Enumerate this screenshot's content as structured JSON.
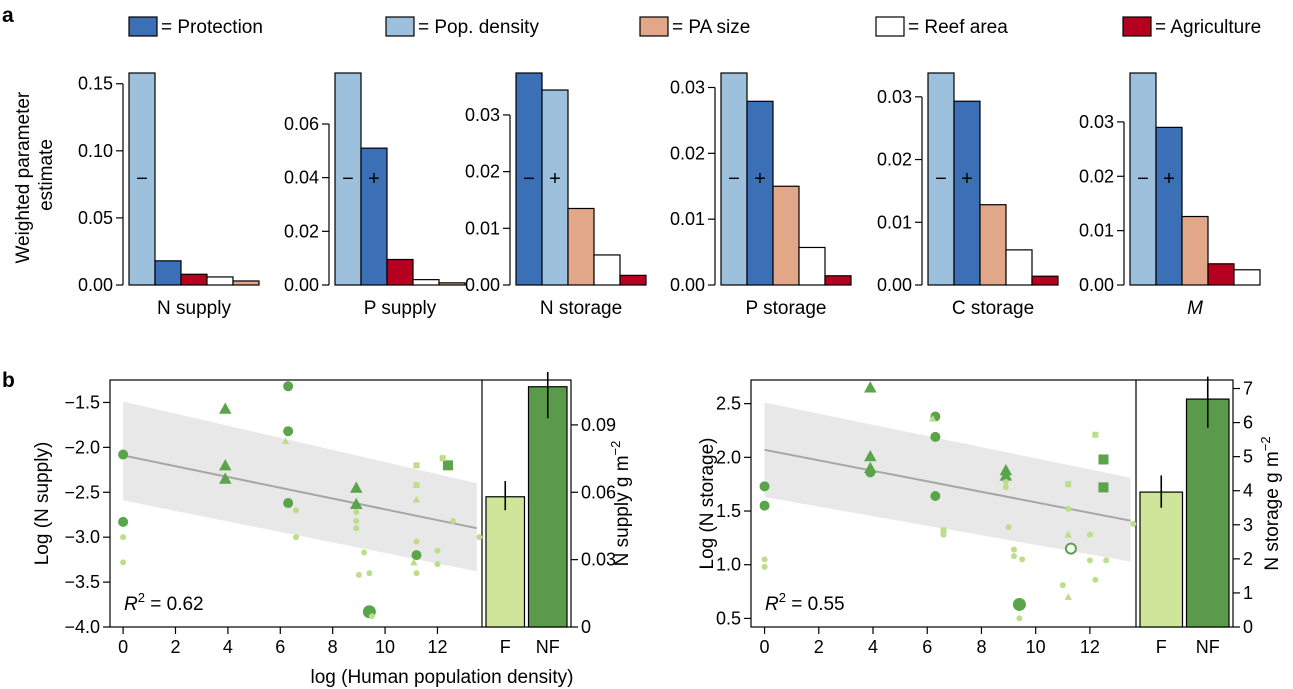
{
  "panel_labels": {
    "a": "a",
    "b": "b"
  },
  "legend": [
    {
      "label": "= Protection",
      "color": "#3b6fb6"
    },
    {
      "label": "= Pop. density",
      "color": "#9dc0dd"
    },
    {
      "label": "= PA size",
      "color": "#e2a688"
    },
    {
      "label": "= Reef area",
      "color": "#ffffff"
    },
    {
      "label": "= Agriculture",
      "color": "#b5001f"
    }
  ],
  "colors": {
    "protection": "#3b6fb6",
    "pop_density": "#9dc0dd",
    "pa_size": "#e2a688",
    "reef_area": "#ffffff",
    "agriculture": "#b5001f",
    "fished": "#cfe59a",
    "not_fished": "#5a9b4b",
    "point_dark": "#5aa44a",
    "point_light": "#bddd8a",
    "ribbon": "#e8e8e8",
    "fit_line": "#a6a6a6"
  },
  "ylabel_a": [
    "Weighted parameter",
    "estimate"
  ],
  "xlabel_b": "log (Human population density)",
  "chart_data": [
    {
      "type": "bar",
      "title": "N supply",
      "categories": [
        "Pop. density",
        "Protection",
        "Agriculture",
        "Reef area",
        "PA size"
      ],
      "values": [
        0.158,
        0.018,
        0.008,
        0.006,
        0.003
      ],
      "signs": [
        "−",
        "",
        "",
        "",
        ""
      ],
      "ylim": [
        0,
        0.158
      ],
      "yticks": [
        "0.00",
        "0.05",
        "0.10",
        "0.15"
      ],
      "ytick_values": [
        0,
        0.05,
        0.1,
        0.15
      ]
    },
    {
      "type": "bar",
      "title": "P supply",
      "categories": [
        "Pop. density",
        "Protection",
        "Agriculture",
        "Reef area",
        "PA size"
      ],
      "values": [
        0.079,
        0.051,
        0.0095,
        0.002,
        0.0008
      ],
      "signs": [
        "−",
        "+",
        "",
        "",
        ""
      ],
      "ylim": [
        0,
        0.079
      ],
      "yticks": [
        "0.00",
        "0.02",
        "0.04",
        "0.06"
      ],
      "ytick_values": [
        0,
        0.02,
        0.04,
        0.06
      ]
    },
    {
      "type": "bar",
      "title": "N storage",
      "categories": [
        "Protection",
        "Pop. density",
        "PA size",
        "Reef area",
        "Agriculture"
      ],
      "values": [
        0.0374,
        0.0344,
        0.0135,
        0.0053,
        0.0017
      ],
      "signs": [
        "−",
        "+",
        "",
        "",
        ""
      ],
      "ylim": [
        0,
        0.0374
      ],
      "yticks": [
        "0.00",
        "0.01",
        "0.02",
        "0.03"
      ],
      "ytick_values": [
        0,
        0.01,
        0.02,
        0.03
      ]
    },
    {
      "type": "bar",
      "title": "P storage",
      "categories": [
        "Pop. density",
        "Protection",
        "PA size",
        "Reef area",
        "Agriculture"
      ],
      "values": [
        0.0322,
        0.0279,
        0.015,
        0.0057,
        0.0014
      ],
      "signs": [
        "−",
        "+",
        "",
        "",
        ""
      ],
      "ylim": [
        0,
        0.0322
      ],
      "yticks": [
        "0.00",
        "0.01",
        "0.02",
        "0.03"
      ],
      "ytick_values": [
        0,
        0.01,
        0.02,
        0.03
      ]
    },
    {
      "type": "bar",
      "title": "C storage",
      "categories": [
        "Pop. density",
        "Protection",
        "PA size",
        "Reef area",
        "Agriculture"
      ],
      "values": [
        0.0338,
        0.0293,
        0.0128,
        0.0056,
        0.0014
      ],
      "signs": [
        "−",
        "+",
        "",
        "",
        ""
      ],
      "ylim": [
        0,
        0.0338
      ],
      "yticks": [
        "0.00",
        "0.01",
        "0.02",
        "0.03"
      ],
      "ytick_values": [
        0,
        0.01,
        0.02,
        0.03
      ]
    },
    {
      "type": "bar",
      "title": "M",
      "categories": [
        "Pop. density",
        "Protection",
        "PA size",
        "Agriculture",
        "Reef area"
      ],
      "values": [
        0.039,
        0.029,
        0.0126,
        0.0039,
        0.0028
      ],
      "signs": [
        "−",
        "+",
        "",
        "",
        ""
      ],
      "ylim": [
        0,
        0.039
      ],
      "yticks": [
        "0.00",
        "0.01",
        "0.02",
        "0.03"
      ],
      "ytick_values": [
        0,
        0.01,
        0.02,
        0.03
      ]
    },
    {
      "type": "scatter",
      "ylabel": "Log (N supply)",
      "xlim": [
        -0.5,
        13.7
      ],
      "ylim": [
        -4.0,
        -1.25
      ],
      "xticks": [
        0,
        2,
        4,
        6,
        8,
        10,
        12
      ],
      "yticks": [
        -4.0,
        -3.5,
        -3.0,
        -2.5,
        -2.0,
        -1.5
      ],
      "ytick_labels": [
        "−4.0",
        "−3.5",
        "−3.0",
        "−2.5",
        "−2.0",
        "−1.5"
      ],
      "fit": {
        "x": [
          0,
          13.5
        ],
        "y": [
          -2.09,
          -2.9
        ]
      },
      "ribbon": {
        "x": [
          0,
          13.5
        ],
        "upper": [
          -1.49,
          -2.4
        ],
        "lower": [
          -2.59,
          -3.38
        ]
      },
      "annotation": {
        "prefix": "R",
        "sup": "2",
        "suffix": " = 0.62"
      },
      "points": [
        {
          "x": 0,
          "y": -2.08,
          "shape": "circle",
          "size": "l",
          "shade": "dark"
        },
        {
          "x": 0,
          "y": -2.83,
          "shape": "circle",
          "size": "l",
          "shade": "dark"
        },
        {
          "x": 0,
          "y": -3.0,
          "shape": "circle",
          "size": "s",
          "shade": "light"
        },
        {
          "x": 0,
          "y": -3.28,
          "shape": "circle",
          "size": "s",
          "shade": "light"
        },
        {
          "x": 3.9,
          "y": -1.57,
          "shape": "triangle",
          "size": "l",
          "shade": "dark"
        },
        {
          "x": 3.9,
          "y": -2.2,
          "shape": "triangle",
          "size": "l",
          "shade": "dark"
        },
        {
          "x": 3.9,
          "y": -2.35,
          "shape": "triangle",
          "size": "l",
          "shade": "dark"
        },
        {
          "x": 6.3,
          "y": -1.32,
          "shape": "circle",
          "size": "l",
          "shade": "dark"
        },
        {
          "x": 6.3,
          "y": -1.82,
          "shape": "circle",
          "size": "l",
          "shade": "dark"
        },
        {
          "x": 6.2,
          "y": -1.93,
          "shape": "triangle",
          "size": "s",
          "shade": "light"
        },
        {
          "x": 6.3,
          "y": -2.62,
          "shape": "circle",
          "size": "l",
          "shade": "dark"
        },
        {
          "x": 6.6,
          "y": -2.7,
          "shape": "circle",
          "size": "s",
          "shade": "light"
        },
        {
          "x": 6.6,
          "y": -3.0,
          "shape": "circle",
          "size": "s",
          "shade": "light"
        },
        {
          "x": 8.9,
          "y": -2.45,
          "shape": "triangle",
          "size": "l",
          "shade": "dark"
        },
        {
          "x": 8.9,
          "y": -2.63,
          "shape": "triangle",
          "size": "l",
          "shade": "dark"
        },
        {
          "x": 8.9,
          "y": -2.72,
          "shape": "circle",
          "size": "s",
          "shade": "light"
        },
        {
          "x": 8.9,
          "y": -2.82,
          "shape": "circle",
          "size": "s",
          "shade": "light"
        },
        {
          "x": 8.9,
          "y": -2.9,
          "shape": "circle",
          "size": "s",
          "shade": "light"
        },
        {
          "x": 9.2,
          "y": -3.17,
          "shape": "circle",
          "size": "s",
          "shade": "light"
        },
        {
          "x": 9.0,
          "y": -3.42,
          "shape": "circle",
          "size": "s",
          "shade": "light"
        },
        {
          "x": 9.4,
          "y": -3.4,
          "shape": "circle",
          "size": "s",
          "shade": "light"
        },
        {
          "x": 9.4,
          "y": -3.83,
          "shape": "circle",
          "size": "xl",
          "shade": "dark"
        },
        {
          "x": 9.5,
          "y": -3.88,
          "shape": "circle",
          "size": "s",
          "shade": "light"
        },
        {
          "x": 11.2,
          "y": -2.2,
          "shape": "square",
          "size": "s",
          "shade": "light"
        },
        {
          "x": 11.2,
          "y": -2.42,
          "shape": "square",
          "size": "s",
          "shade": "light"
        },
        {
          "x": 11.2,
          "y": -2.58,
          "shape": "triangle",
          "size": "s",
          "shade": "light"
        },
        {
          "x": 11.2,
          "y": -3.05,
          "shape": "circle",
          "size": "s",
          "shade": "light"
        },
        {
          "x": 11.2,
          "y": -3.2,
          "shape": "circle",
          "size": "l",
          "shade": "dark"
        },
        {
          "x": 11.1,
          "y": -3.28,
          "shape": "triangle",
          "size": "s",
          "shade": "light"
        },
        {
          "x": 11.2,
          "y": -3.4,
          "shape": "circle",
          "size": "s",
          "shade": "light"
        },
        {
          "x": 12.4,
          "y": -2.2,
          "shape": "square",
          "size": "l",
          "shade": "dark"
        },
        {
          "x": 12.2,
          "y": -2.12,
          "shape": "square",
          "size": "s",
          "shade": "light"
        },
        {
          "x": 12.0,
          "y": -3.15,
          "shape": "circle",
          "size": "s",
          "shade": "light"
        },
        {
          "x": 12.0,
          "y": -3.3,
          "shape": "circle",
          "size": "s",
          "shade": "light"
        },
        {
          "x": 12.6,
          "y": -2.82,
          "shape": "circle",
          "size": "s",
          "shade": "light"
        },
        {
          "x": 13.6,
          "y": -3.0,
          "shape": "circle",
          "size": "s",
          "shade": "light"
        }
      ],
      "bars": {
        "categories": [
          "F",
          "NF"
        ],
        "values": [
          0.058,
          0.107
        ],
        "errors": [
          [
            0.052,
            0.065
          ],
          [
            0.093,
            0.121
          ]
        ],
        "ylim": [
          0,
          0.11
        ],
        "yticks": [
          0,
          0.03,
          0.06,
          0.09
        ],
        "ytick_labels": [
          "0",
          "0.03",
          "0.06",
          "0.09"
        ],
        "ylabel": "N supply g m",
        "ylabel_sup": "−2"
      }
    },
    {
      "type": "scatter",
      "ylabel": "Log (N storage)",
      "xlim": [
        -0.5,
        13.7
      ],
      "ylim": [
        0.42,
        2.72
      ],
      "xticks": [
        0,
        2,
        4,
        6,
        8,
        10,
        12
      ],
      "yticks": [
        0.5,
        1.0,
        1.5,
        2.0,
        2.5
      ],
      "ytick_labels": [
        "0.5",
        "1.0",
        "1.5",
        "2.0",
        "2.5"
      ],
      "fit": {
        "x": [
          0,
          13.5
        ],
        "y": [
          2.07,
          1.41
        ]
      },
      "ribbon": {
        "x": [
          0,
          13.5
        ],
        "upper": [
          2.51,
          1.81
        ],
        "lower": [
          1.63,
          1.03
        ]
      },
      "annotation": {
        "prefix": "R",
        "sup": "2",
        "suffix": " = 0.55"
      },
      "points": [
        {
          "x": 0,
          "y": 1.73,
          "shape": "circle",
          "size": "l",
          "shade": "dark"
        },
        {
          "x": 0,
          "y": 1.55,
          "shape": "circle",
          "size": "l",
          "shade": "dark"
        },
        {
          "x": 0,
          "y": 1.05,
          "shape": "circle",
          "size": "s",
          "shade": "light"
        },
        {
          "x": 0,
          "y": 0.98,
          "shape": "circle",
          "size": "s",
          "shade": "light"
        },
        {
          "x": 3.9,
          "y": 2.65,
          "shape": "triangle",
          "size": "l",
          "shade": "dark"
        },
        {
          "x": 3.9,
          "y": 2.01,
          "shape": "triangle",
          "size": "l",
          "shade": "dark"
        },
        {
          "x": 3.9,
          "y": 1.9,
          "shape": "triangle",
          "size": "l",
          "shade": "dark"
        },
        {
          "x": 3.9,
          "y": 1.86,
          "shape": "circle",
          "size": "l",
          "shade": "dark"
        },
        {
          "x": 6.3,
          "y": 2.38,
          "shape": "circle",
          "size": "l",
          "shade": "dark"
        },
        {
          "x": 6.2,
          "y": 2.36,
          "shape": "triangle",
          "size": "s",
          "shade": "light"
        },
        {
          "x": 6.3,
          "y": 2.19,
          "shape": "circle",
          "size": "l",
          "shade": "dark"
        },
        {
          "x": 6.3,
          "y": 1.64,
          "shape": "circle",
          "size": "l",
          "shade": "dark"
        },
        {
          "x": 6.6,
          "y": 1.32,
          "shape": "square",
          "size": "s",
          "shade": "light"
        },
        {
          "x": 6.6,
          "y": 1.28,
          "shape": "circle",
          "size": "s",
          "shade": "light"
        },
        {
          "x": 8.9,
          "y": 1.88,
          "shape": "triangle",
          "size": "l",
          "shade": "dark"
        },
        {
          "x": 8.9,
          "y": 1.83,
          "shape": "triangle",
          "size": "l",
          "shade": "dark"
        },
        {
          "x": 8.9,
          "y": 1.77,
          "shape": "circle",
          "size": "s",
          "shade": "light"
        },
        {
          "x": 8.9,
          "y": 1.72,
          "shape": "circle",
          "size": "s",
          "shade": "light"
        },
        {
          "x": 9.0,
          "y": 1.35,
          "shape": "circle",
          "size": "s",
          "shade": "light"
        },
        {
          "x": 9.2,
          "y": 1.14,
          "shape": "circle",
          "size": "s",
          "shade": "light"
        },
        {
          "x": 9.2,
          "y": 1.08,
          "shape": "circle",
          "size": "s",
          "shade": "light"
        },
        {
          "x": 9.5,
          "y": 1.05,
          "shape": "circle",
          "size": "s",
          "shade": "light"
        },
        {
          "x": 9.4,
          "y": 0.63,
          "shape": "circle",
          "size": "xl",
          "shade": "dark"
        },
        {
          "x": 9.4,
          "y": 0.5,
          "shape": "circle",
          "size": "s",
          "shade": "light"
        },
        {
          "x": 11.2,
          "y": 1.75,
          "shape": "square",
          "size": "s",
          "shade": "light"
        },
        {
          "x": 11.2,
          "y": 1.52,
          "shape": "circle",
          "size": "s",
          "shade": "light"
        },
        {
          "x": 11.2,
          "y": 1.28,
          "shape": "triangle",
          "size": "s",
          "shade": "light"
        },
        {
          "x": 11.3,
          "y": 1.15,
          "shape": "circle",
          "size": "l",
          "shade": "dark",
          "hollow": true
        },
        {
          "x": 11.0,
          "y": 0.81,
          "shape": "circle",
          "size": "s",
          "shade": "light"
        },
        {
          "x": 11.2,
          "y": 0.7,
          "shape": "triangle",
          "size": "s",
          "shade": "light"
        },
        {
          "x": 12.2,
          "y": 2.21,
          "shape": "square",
          "size": "s",
          "shade": "light"
        },
        {
          "x": 12.5,
          "y": 1.98,
          "shape": "square",
          "size": "l",
          "shade": "dark"
        },
        {
          "x": 12.5,
          "y": 1.72,
          "shape": "square",
          "size": "l",
          "shade": "dark"
        },
        {
          "x": 12.0,
          "y": 1.28,
          "shape": "circle",
          "size": "s",
          "shade": "light"
        },
        {
          "x": 12.0,
          "y": 1.04,
          "shape": "circle",
          "size": "s",
          "shade": "light"
        },
        {
          "x": 12.2,
          "y": 0.86,
          "shape": "circle",
          "size": "s",
          "shade": "light"
        },
        {
          "x": 12.6,
          "y": 1.04,
          "shape": "circle",
          "size": "s",
          "shade": "light"
        },
        {
          "x": 13.6,
          "y": 1.38,
          "shape": "circle",
          "size": "s",
          "shade": "light"
        }
      ],
      "bars": {
        "categories": [
          "F",
          "NF"
        ],
        "values": [
          3.96,
          6.69
        ],
        "errors": [
          [
            3.5,
            4.45
          ],
          [
            5.85,
            7.35
          ]
        ],
        "ylim": [
          0,
          7.25
        ],
        "yticks": [
          0,
          1,
          2,
          3,
          4,
          5,
          6,
          7
        ],
        "ytick_labels": [
          "0",
          "1",
          "2",
          "3",
          "4",
          "5",
          "6",
          "7"
        ],
        "ylabel": "N storage g m",
        "ylabel_sup": "−2"
      }
    }
  ]
}
